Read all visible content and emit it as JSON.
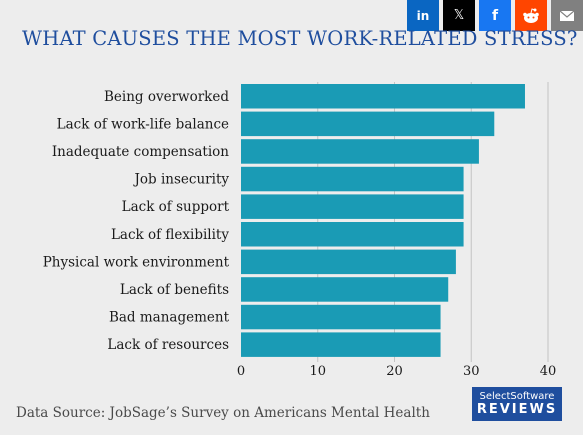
{
  "share": [
    {
      "name": "linkedin-icon",
      "label": "in",
      "color": "#0a66c2"
    },
    {
      "name": "x-twitter-icon",
      "label": "𝕏",
      "color": "#000000"
    },
    {
      "name": "facebook-icon",
      "label": "f",
      "color": "#1877f2"
    },
    {
      "name": "reddit-icon",
      "label": "reddit",
      "color": "#ff4500"
    },
    {
      "name": "email-icon",
      "label": "email",
      "color": "#808080"
    }
  ],
  "chart_data": {
    "type": "bar",
    "orientation": "horizontal",
    "title": "WHAT CAUSES THE MOST WORK-RELATED STRESS?",
    "categories": [
      "Being overworked",
      "Lack of work-life balance",
      "Inadequate compensation",
      "Job insecurity",
      "Lack of support",
      "Lack of flexibility",
      "Physical work environment",
      "Lack of benefits",
      "Bad management",
      "Lack of resources"
    ],
    "values": [
      37,
      33,
      31,
      29,
      29,
      29,
      28,
      27,
      26,
      26
    ],
    "xlim": [
      0,
      40
    ],
    "xticks": [
      0,
      10,
      20,
      30,
      40
    ],
    "xlabel": "",
    "ylabel": "",
    "grid": "vertical",
    "bar_color": "#1a9bb5",
    "title_color": "#1f4e9e"
  },
  "source": "Data Source: JobSage’s Survey on Americans Mental Health",
  "brand": {
    "top": "SelectSoftware",
    "bottom": "REVIEWS",
    "color": "#1f4e9e"
  }
}
